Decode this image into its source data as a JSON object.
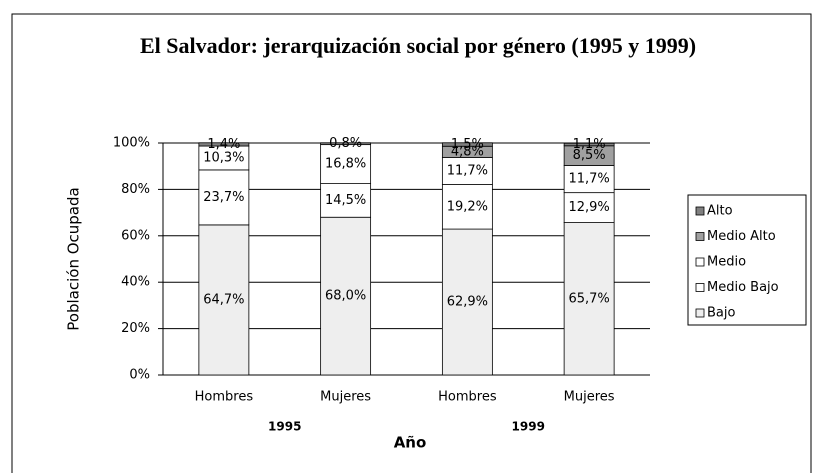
{
  "chart_data": {
    "type": "stacked_bar",
    "title": "El Salvador: jerarquización social por género (1995 y 1999)",
    "y_label": "Población Ocupada",
    "x_label": "Año",
    "categories": [
      "Hombres",
      "Mujeres",
      "Hombres",
      "Mujeres"
    ],
    "group_labels": [
      "1995",
      "1999"
    ],
    "ylim": [
      0,
      100
    ],
    "yticks": [
      {
        "value": 0,
        "label": "0%"
      },
      {
        "value": 20,
        "label": "20%"
      },
      {
        "value": 40,
        "label": "40%"
      },
      {
        "value": 60,
        "label": "60%"
      },
      {
        "value": 80,
        "label": "80%"
      },
      {
        "value": 100,
        "label": "100%"
      }
    ],
    "grid": true,
    "legend": "right",
    "series": [
      {
        "name": "Bajo",
        "color": "#eeeeee",
        "values": [
          64.7,
          68.0,
          62.9,
          65.7
        ],
        "value_labels": [
          "64,7%",
          "68,0%",
          "62,9%",
          "65,7%"
        ]
      },
      {
        "name": "Medio Bajo",
        "color": "#ffffff",
        "values": [
          23.7,
          14.5,
          19.2,
          12.9
        ],
        "value_labels": [
          "23,7%",
          "14,5%",
          "19,2%",
          "12,9%"
        ]
      },
      {
        "name": "Medio",
        "color": "#ffffff",
        "values": [
          10.3,
          16.8,
          11.7,
          11.7
        ],
        "value_labels": [
          "10,3%",
          "16,8%",
          "11,7%",
          "11,7%"
        ]
      },
      {
        "name": "Medio Alto",
        "color": "#a0a0a0",
        "values": [
          null,
          null,
          4.8,
          8.5
        ],
        "value_labels": [
          null,
          null,
          "4,8%",
          "8,5%"
        ]
      },
      {
        "name": "Alto",
        "color": "#808080",
        "values": [
          1.4,
          0.8,
          1.5,
          1.1
        ],
        "value_labels": [
          "1,4%",
          "0,8%",
          "1,5%",
          "1,1%"
        ]
      }
    ]
  }
}
